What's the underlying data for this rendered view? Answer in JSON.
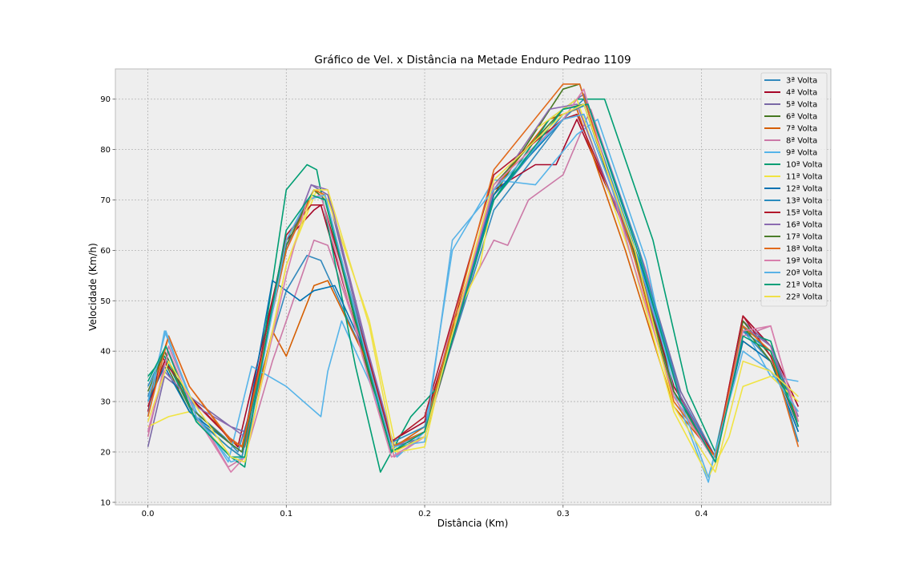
{
  "chart_data": {
    "type": "line",
    "title": "Gráfico de Vel. x Distância na Metade Enduro Pedrao 1109",
    "xlabel": "Distância (Km)",
    "ylabel": "Velocidade (Km/h)",
    "xlim": [
      -0.0235,
      0.4935
    ],
    "ylim": [
      9.5,
      96.0
    ],
    "xticks": [
      0.0,
      0.1,
      0.2,
      0.3,
      0.4
    ],
    "xtick_labels": [
      "0.0",
      "0.1",
      "0.2",
      "0.3",
      "0.4"
    ],
    "yticks": [
      10,
      20,
      30,
      40,
      50,
      60,
      70,
      80,
      90
    ],
    "ytick_labels": [
      "10",
      "20",
      "30",
      "40",
      "50",
      "60",
      "70",
      "80",
      "90"
    ],
    "grid": true,
    "legend_position": "top-right",
    "series": [
      {
        "name": "3ª Volta",
        "color": "#348ABD",
        "x": [
          0.0,
          0.012,
          0.03,
          0.055,
          0.065,
          0.1,
          0.115,
          0.125,
          0.155,
          0.175,
          0.2,
          0.25,
          0.3,
          0.315,
          0.35,
          0.38,
          0.41,
          0.43,
          0.45,
          0.47
        ],
        "y": [
          31,
          40,
          29,
          23,
          20,
          52,
          59,
          58,
          40,
          21,
          24,
          68,
          86,
          90,
          62,
          33,
          19,
          44,
          38,
          24
        ]
      },
      {
        "name": "4ª Volta",
        "color": "#A60628",
        "x": [
          0.0,
          0.01,
          0.03,
          0.055,
          0.065,
          0.1,
          0.12,
          0.125,
          0.155,
          0.175,
          0.2,
          0.25,
          0.28,
          0.295,
          0.31,
          0.35,
          0.38,
          0.41,
          0.43,
          0.45,
          0.47
        ],
        "y": [
          28,
          39,
          31,
          24,
          21,
          62,
          68,
          69,
          40,
          22,
          26,
          72,
          77,
          77,
          86,
          61,
          33,
          19,
          47,
          41,
          29
        ]
      },
      {
        "name": "5ª Volta",
        "color": "#7A68A6",
        "x": [
          0.0,
          0.012,
          0.035,
          0.06,
          0.07,
          0.1,
          0.118,
          0.13,
          0.16,
          0.178,
          0.2,
          0.25,
          0.29,
          0.315,
          0.355,
          0.385,
          0.41,
          0.43,
          0.45,
          0.47
        ],
        "y": [
          21,
          35,
          30,
          25,
          24,
          60,
          73,
          71,
          38,
          21,
          23,
          70,
          86,
          91,
          60,
          32,
          19,
          46,
          41,
          25
        ]
      },
      {
        "name": "6ª Volta",
        "color": "#467821",
        "x": [
          0.0,
          0.012,
          0.03,
          0.058,
          0.068,
          0.1,
          0.12,
          0.128,
          0.157,
          0.176,
          0.2,
          0.25,
          0.3,
          0.312,
          0.352,
          0.38,
          0.41,
          0.43,
          0.45,
          0.47
        ],
        "y": [
          30,
          38,
          28,
          21,
          19,
          62,
          72,
          70,
          38,
          20,
          23,
          71,
          92,
          93,
          58,
          31,
          18,
          46,
          39,
          26
        ]
      },
      {
        "name": "7ª Volta",
        "color": "#D55E00",
        "x": [
          0.0,
          0.015,
          0.03,
          0.06,
          0.07,
          0.09,
          0.1,
          0.12,
          0.13,
          0.16,
          0.178,
          0.2,
          0.25,
          0.29,
          0.31,
          0.345,
          0.38,
          0.41,
          0.43,
          0.45,
          0.47
        ],
        "y": [
          30,
          43,
          33,
          22,
          21,
          44,
          39,
          53,
          54,
          37,
          21,
          25,
          72,
          86,
          88,
          60,
          29,
          19,
          42,
          38,
          27
        ]
      },
      {
        "name": "8ª Volta",
        "color": "#CC79A7",
        "x": [
          0.0,
          0.015,
          0.035,
          0.058,
          0.07,
          0.09,
          0.12,
          0.13,
          0.16,
          0.178,
          0.2,
          0.22,
          0.25,
          0.26,
          0.275,
          0.3,
          0.32,
          0.36,
          0.385,
          0.41,
          0.43,
          0.45,
          0.47
        ],
        "y": [
          23,
          41,
          28,
          17,
          19,
          38,
          62,
          61,
          37,
          19,
          23,
          46,
          62,
          61,
          70,
          75,
          88,
          56,
          30,
          18,
          43,
          45,
          26
        ]
      },
      {
        "name": "9ª Volta",
        "color": "#56B4E9",
        "x": [
          0.0,
          0.012,
          0.035,
          0.058,
          0.075,
          0.1,
          0.125,
          0.13,
          0.14,
          0.16,
          0.18,
          0.2,
          0.22,
          0.25,
          0.28,
          0.31,
          0.325,
          0.36,
          0.38,
          0.405,
          0.43,
          0.45,
          0.47
        ],
        "y": [
          27,
          44,
          28,
          18,
          37,
          33,
          27,
          36,
          46,
          34,
          19,
          24,
          60,
          74,
          73,
          83,
          86,
          58,
          32,
          14,
          45,
          35,
          34
        ]
      },
      {
        "name": "10ª Volta",
        "color": "#009E73",
        "x": [
          0.0,
          0.012,
          0.035,
          0.06,
          0.07,
          0.1,
          0.115,
          0.122,
          0.15,
          0.168,
          0.19,
          0.21,
          0.25,
          0.29,
          0.31,
          0.33,
          0.365,
          0.39,
          0.41,
          0.43,
          0.45,
          0.47
        ],
        "y": [
          35,
          39,
          26,
          19,
          17,
          72,
          77,
          76,
          37,
          16,
          27,
          33,
          70,
          86,
          90,
          90,
          62,
          32,
          20,
          44,
          42,
          25
        ]
      },
      {
        "name": "11ª Volta",
        "color": "#F0E442",
        "x": [
          0.0,
          0.015,
          0.03,
          0.06,
          0.07,
          0.1,
          0.122,
          0.13,
          0.16,
          0.18,
          0.2,
          0.22,
          0.24,
          0.25,
          0.28,
          0.31,
          0.35,
          0.38,
          0.405,
          0.42,
          0.43,
          0.45,
          0.47
        ],
        "y": [
          25,
          27,
          28,
          19,
          18,
          57,
          72,
          70,
          46,
          20,
          21,
          45,
          57,
          72,
          84,
          90,
          58,
          28,
          15,
          23,
          33,
          35,
          30
        ]
      },
      {
        "name": "12ª Volta",
        "color": "#0072B2",
        "x": [
          0.0,
          0.012,
          0.03,
          0.058,
          0.068,
          0.09,
          0.11,
          0.12,
          0.135,
          0.16,
          0.178,
          0.2,
          0.25,
          0.3,
          0.315,
          0.355,
          0.385,
          0.41,
          0.43,
          0.45,
          0.47
        ],
        "y": [
          30,
          37,
          28,
          22,
          20,
          54,
          50,
          52,
          53,
          38,
          21,
          24,
          71,
          86,
          87,
          58,
          30,
          19,
          42,
          38,
          24
        ]
      },
      {
        "name": "13ª Volta",
        "color": "#2B8CBE",
        "x": [
          0.0,
          0.012,
          0.033,
          0.058,
          0.068,
          0.1,
          0.12,
          0.128,
          0.158,
          0.177,
          0.2,
          0.25,
          0.3,
          0.318,
          0.355,
          0.385,
          0.41,
          0.43,
          0.45,
          0.47
        ],
        "y": [
          33,
          40,
          27,
          21,
          19,
          61,
          72,
          70,
          40,
          22,
          25,
          70,
          87,
          89,
          60,
          31,
          19,
          44,
          40,
          22
        ]
      },
      {
        "name": "15ª Volta",
        "color": "#B2182B",
        "x": [
          0.0,
          0.012,
          0.033,
          0.058,
          0.068,
          0.1,
          0.118,
          0.127,
          0.157,
          0.176,
          0.2,
          0.25,
          0.3,
          0.31,
          0.352,
          0.38,
          0.41,
          0.43,
          0.45,
          0.47
        ],
        "y": [
          29,
          38,
          30,
          23,
          21,
          63,
          69,
          69,
          41,
          22,
          27,
          75,
          86,
          87,
          60,
          32,
          19,
          47,
          39,
          25
        ]
      },
      {
        "name": "16ª Volta",
        "color": "#8C6BB1",
        "x": [
          0.0,
          0.012,
          0.035,
          0.06,
          0.07,
          0.1,
          0.118,
          0.13,
          0.16,
          0.178,
          0.2,
          0.25,
          0.29,
          0.31,
          0.35,
          0.385,
          0.41,
          0.43,
          0.45,
          0.47
        ],
        "y": [
          24,
          36,
          29,
          25,
          23,
          60,
          73,
          72,
          39,
          21,
          24,
          72,
          88,
          89,
          60,
          31,
          18,
          45,
          41,
          27
        ]
      },
      {
        "name": "17ª Volta",
        "color": "#4D7E2B",
        "x": [
          0.0,
          0.012,
          0.03,
          0.058,
          0.068,
          0.1,
          0.12,
          0.128,
          0.157,
          0.176,
          0.2,
          0.25,
          0.3,
          0.315,
          0.352,
          0.38,
          0.41,
          0.43,
          0.45,
          0.47
        ],
        "y": [
          32,
          40,
          29,
          22,
          20,
          61,
          72,
          70,
          39,
          21,
          24,
          73,
          88,
          89,
          59,
          32,
          18,
          45,
          38,
          26
        ]
      },
      {
        "name": "18ª Volta",
        "color": "#E16A1C",
        "x": [
          0.0,
          0.015,
          0.03,
          0.058,
          0.068,
          0.1,
          0.12,
          0.128,
          0.157,
          0.176,
          0.2,
          0.25,
          0.3,
          0.312,
          0.35,
          0.38,
          0.41,
          0.43,
          0.45,
          0.47
        ],
        "y": [
          27,
          43,
          33,
          23,
          21,
          60,
          72,
          71,
          40,
          21,
          24,
          76,
          93,
          93,
          60,
          30,
          19,
          45,
          40,
          21
        ]
      },
      {
        "name": "19ª Volta",
        "color": "#D87FAD",
        "x": [
          0.0,
          0.015,
          0.035,
          0.06,
          0.07,
          0.1,
          0.115,
          0.125,
          0.155,
          0.176,
          0.2,
          0.25,
          0.3,
          0.315,
          0.35,
          0.38,
          0.41,
          0.43,
          0.45,
          0.47
        ],
        "y": [
          24,
          40,
          27,
          16,
          19,
          55,
          70,
          71,
          39,
          19,
          23,
          73,
          86,
          92,
          58,
          31,
          18,
          44,
          45,
          26
        ]
      },
      {
        "name": "20ª Volta",
        "color": "#5AB2E6",
        "x": [
          0.0,
          0.013,
          0.035,
          0.06,
          0.07,
          0.1,
          0.115,
          0.128,
          0.157,
          0.176,
          0.2,
          0.22,
          0.25,
          0.3,
          0.315,
          0.352,
          0.385,
          0.405,
          0.43,
          0.45,
          0.47
        ],
        "y": [
          30,
          44,
          27,
          18,
          19,
          62,
          70,
          71,
          40,
          21,
          22,
          62,
          72,
          86,
          87,
          60,
          30,
          15,
          40,
          36,
          28
        ]
      },
      {
        "name": "21ª Volta",
        "color": "#00A07A",
        "x": [
          0.0,
          0.013,
          0.035,
          0.06,
          0.07,
          0.1,
          0.118,
          0.128,
          0.158,
          0.176,
          0.2,
          0.25,
          0.3,
          0.318,
          0.355,
          0.385,
          0.41,
          0.43,
          0.45,
          0.47
        ],
        "y": [
          34,
          41,
          26,
          19,
          19,
          64,
          71,
          70,
          38,
          20,
          24,
          70,
          88,
          89,
          59,
          30,
          18,
          43,
          40,
          25
        ]
      },
      {
        "name": "22ª Volta",
        "color": "#EFE04A",
        "x": [
          0.0,
          0.015,
          0.035,
          0.06,
          0.07,
          0.1,
          0.12,
          0.13,
          0.16,
          0.178,
          0.2,
          0.25,
          0.3,
          0.315,
          0.352,
          0.38,
          0.41,
          0.43,
          0.45,
          0.47
        ],
        "y": [
          26,
          38,
          29,
          19,
          18,
          57,
          72,
          72,
          45,
          20,
          23,
          74,
          87,
          89,
          60,
          29,
          16,
          38,
          36,
          31
        ]
      }
    ]
  }
}
